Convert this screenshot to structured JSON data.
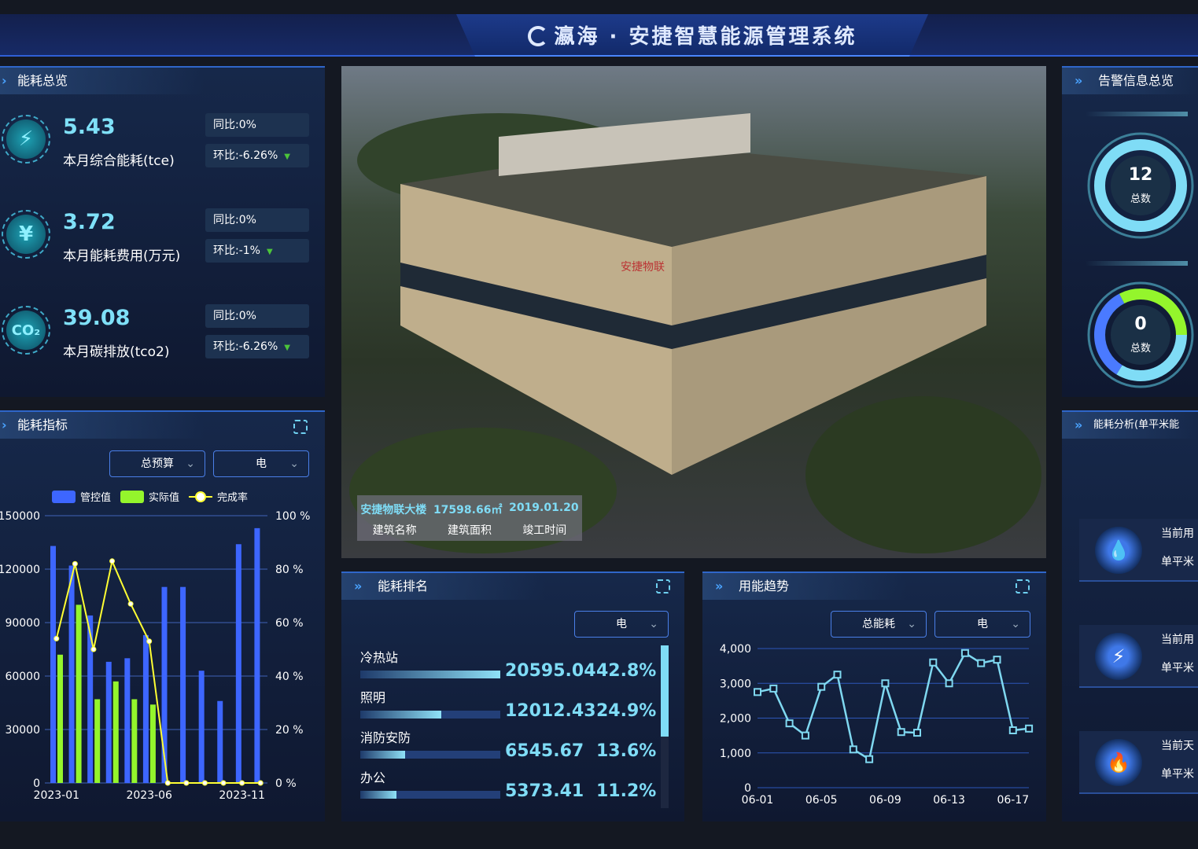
{
  "header": {
    "title": "瀛海 · 安捷智慧能源管理系统"
  },
  "overview": {
    "title": "能耗总览",
    "metrics": [
      {
        "icon": "lightning-icon",
        "value": "5.43",
        "label": "本月综合能耗(tce)",
        "yoy": "同比:0%",
        "mom": "环比:-6.26%"
      },
      {
        "icon": "yen-icon",
        "value": "3.72",
        "label": "本月能耗费用(万元)",
        "yoy": "同比:0%",
        "mom": "环比:-1%"
      },
      {
        "icon": "co2-icon",
        "value": "39.08",
        "label": "本月碳排放(tco2)",
        "yoy": "同比:0%",
        "mom": "环比:-6.26%"
      }
    ]
  },
  "indicator": {
    "title": "能耗指标",
    "select1": "总预算",
    "select2": "电"
  },
  "building": {
    "name": "安捷物联大楼",
    "area": "17598.66㎡",
    "date": "2019.01.20",
    "name_label": "建筑名称",
    "area_label": "建筑面积",
    "date_label": "竣工时间",
    "sign": "安捷物联"
  },
  "ranking": {
    "title": "能耗排名",
    "select": "电",
    "items": [
      {
        "name": "冷热站",
        "value": "20595.04",
        "pct": "42.8%",
        "ratio": 1.0
      },
      {
        "name": "照明",
        "value": "12012.43",
        "pct": "24.9%",
        "ratio": 0.58
      },
      {
        "name": "消防安防",
        "value": "6545.67",
        "pct": "13.6%",
        "ratio": 0.32
      },
      {
        "name": "办公",
        "value": "5373.41",
        "pct": "11.2%",
        "ratio": 0.26
      }
    ]
  },
  "trend_panel": {
    "title": "用能趋势",
    "select1": "总能耗",
    "select2": "电"
  },
  "alarm": {
    "title": "告警信息总览",
    "rings": [
      {
        "value": "12",
        "label": "总数"
      },
      {
        "value": "0",
        "label": "总数"
      }
    ]
  },
  "analysis": {
    "title": "能耗分析(单平米能",
    "cards": [
      {
        "icon": "water-drop-icon",
        "line1": "当前用",
        "line2": "单平米"
      },
      {
        "icon": "lightning-icon",
        "line1": "当前用",
        "line2": "单平米"
      },
      {
        "icon": "flame-icon",
        "line1": "当前天",
        "line2": "单平米"
      }
    ]
  },
  "colors": {
    "control": "#3d66ff",
    "actual": "#94f52c",
    "rate": "#ffff33",
    "trend": "#7fd8f0"
  },
  "chart_data": [
    {
      "type": "bar",
      "categories": [
        "2023-01",
        "2023-02",
        "2023-03",
        "2023-04",
        "2023-05",
        "2023-06",
        "2023-07",
        "2023-08",
        "2023-09",
        "2023-10",
        "2023-11",
        "2023-12"
      ],
      "tick_labels": [
        "2023-01",
        "2023-06",
        "2023-11"
      ],
      "series": [
        {
          "name": "管控值",
          "type": "bar",
          "values": [
            133000,
            122000,
            94000,
            68000,
            70000,
            83000,
            110000,
            110000,
            63000,
            46000,
            134000,
            143000
          ]
        },
        {
          "name": "实际值",
          "type": "bar",
          "values": [
            72000,
            100000,
            47000,
            57000,
            47000,
            44000,
            0,
            0,
            0,
            0,
            0,
            0
          ]
        },
        {
          "name": "完成率",
          "type": "line",
          "axis": "right",
          "values": [
            54,
            82,
            50,
            83,
            67,
            53,
            0,
            0,
            0,
            0,
            0,
            0
          ]
        }
      ],
      "ylim": [
        0,
        150000
      ],
      "yticks": [
        "0",
        "30000",
        "60000",
        "90000",
        "120000",
        "150000"
      ],
      "y2lim": [
        0,
        100
      ],
      "y2ticks": [
        "0 %",
        "20 %",
        "40 %",
        "60 %",
        "80 %",
        "100 %"
      ],
      "legend": "top",
      "grid": true
    },
    {
      "type": "line",
      "x": [
        "06-01",
        "06-02",
        "06-03",
        "06-04",
        "06-05",
        "06-06",
        "06-07",
        "06-08",
        "06-09",
        "06-10",
        "06-11",
        "06-12",
        "06-13",
        "06-14",
        "06-15",
        "06-16",
        "06-17",
        "06-18"
      ],
      "tick_labels": [
        "06-01",
        "06-05",
        "06-09",
        "06-13",
        "06-17"
      ],
      "values": [
        2750,
        2850,
        1850,
        1500,
        2900,
        3250,
        1100,
        820,
        3000,
        1600,
        1580,
        3600,
        3000,
        3870,
        3580,
        3680,
        1650,
        1700
      ],
      "ylim": [
        0,
        4000
      ],
      "yticks": [
        "0",
        "1,000",
        "2,000",
        "3,000",
        "4,000"
      ],
      "grid": true
    }
  ]
}
